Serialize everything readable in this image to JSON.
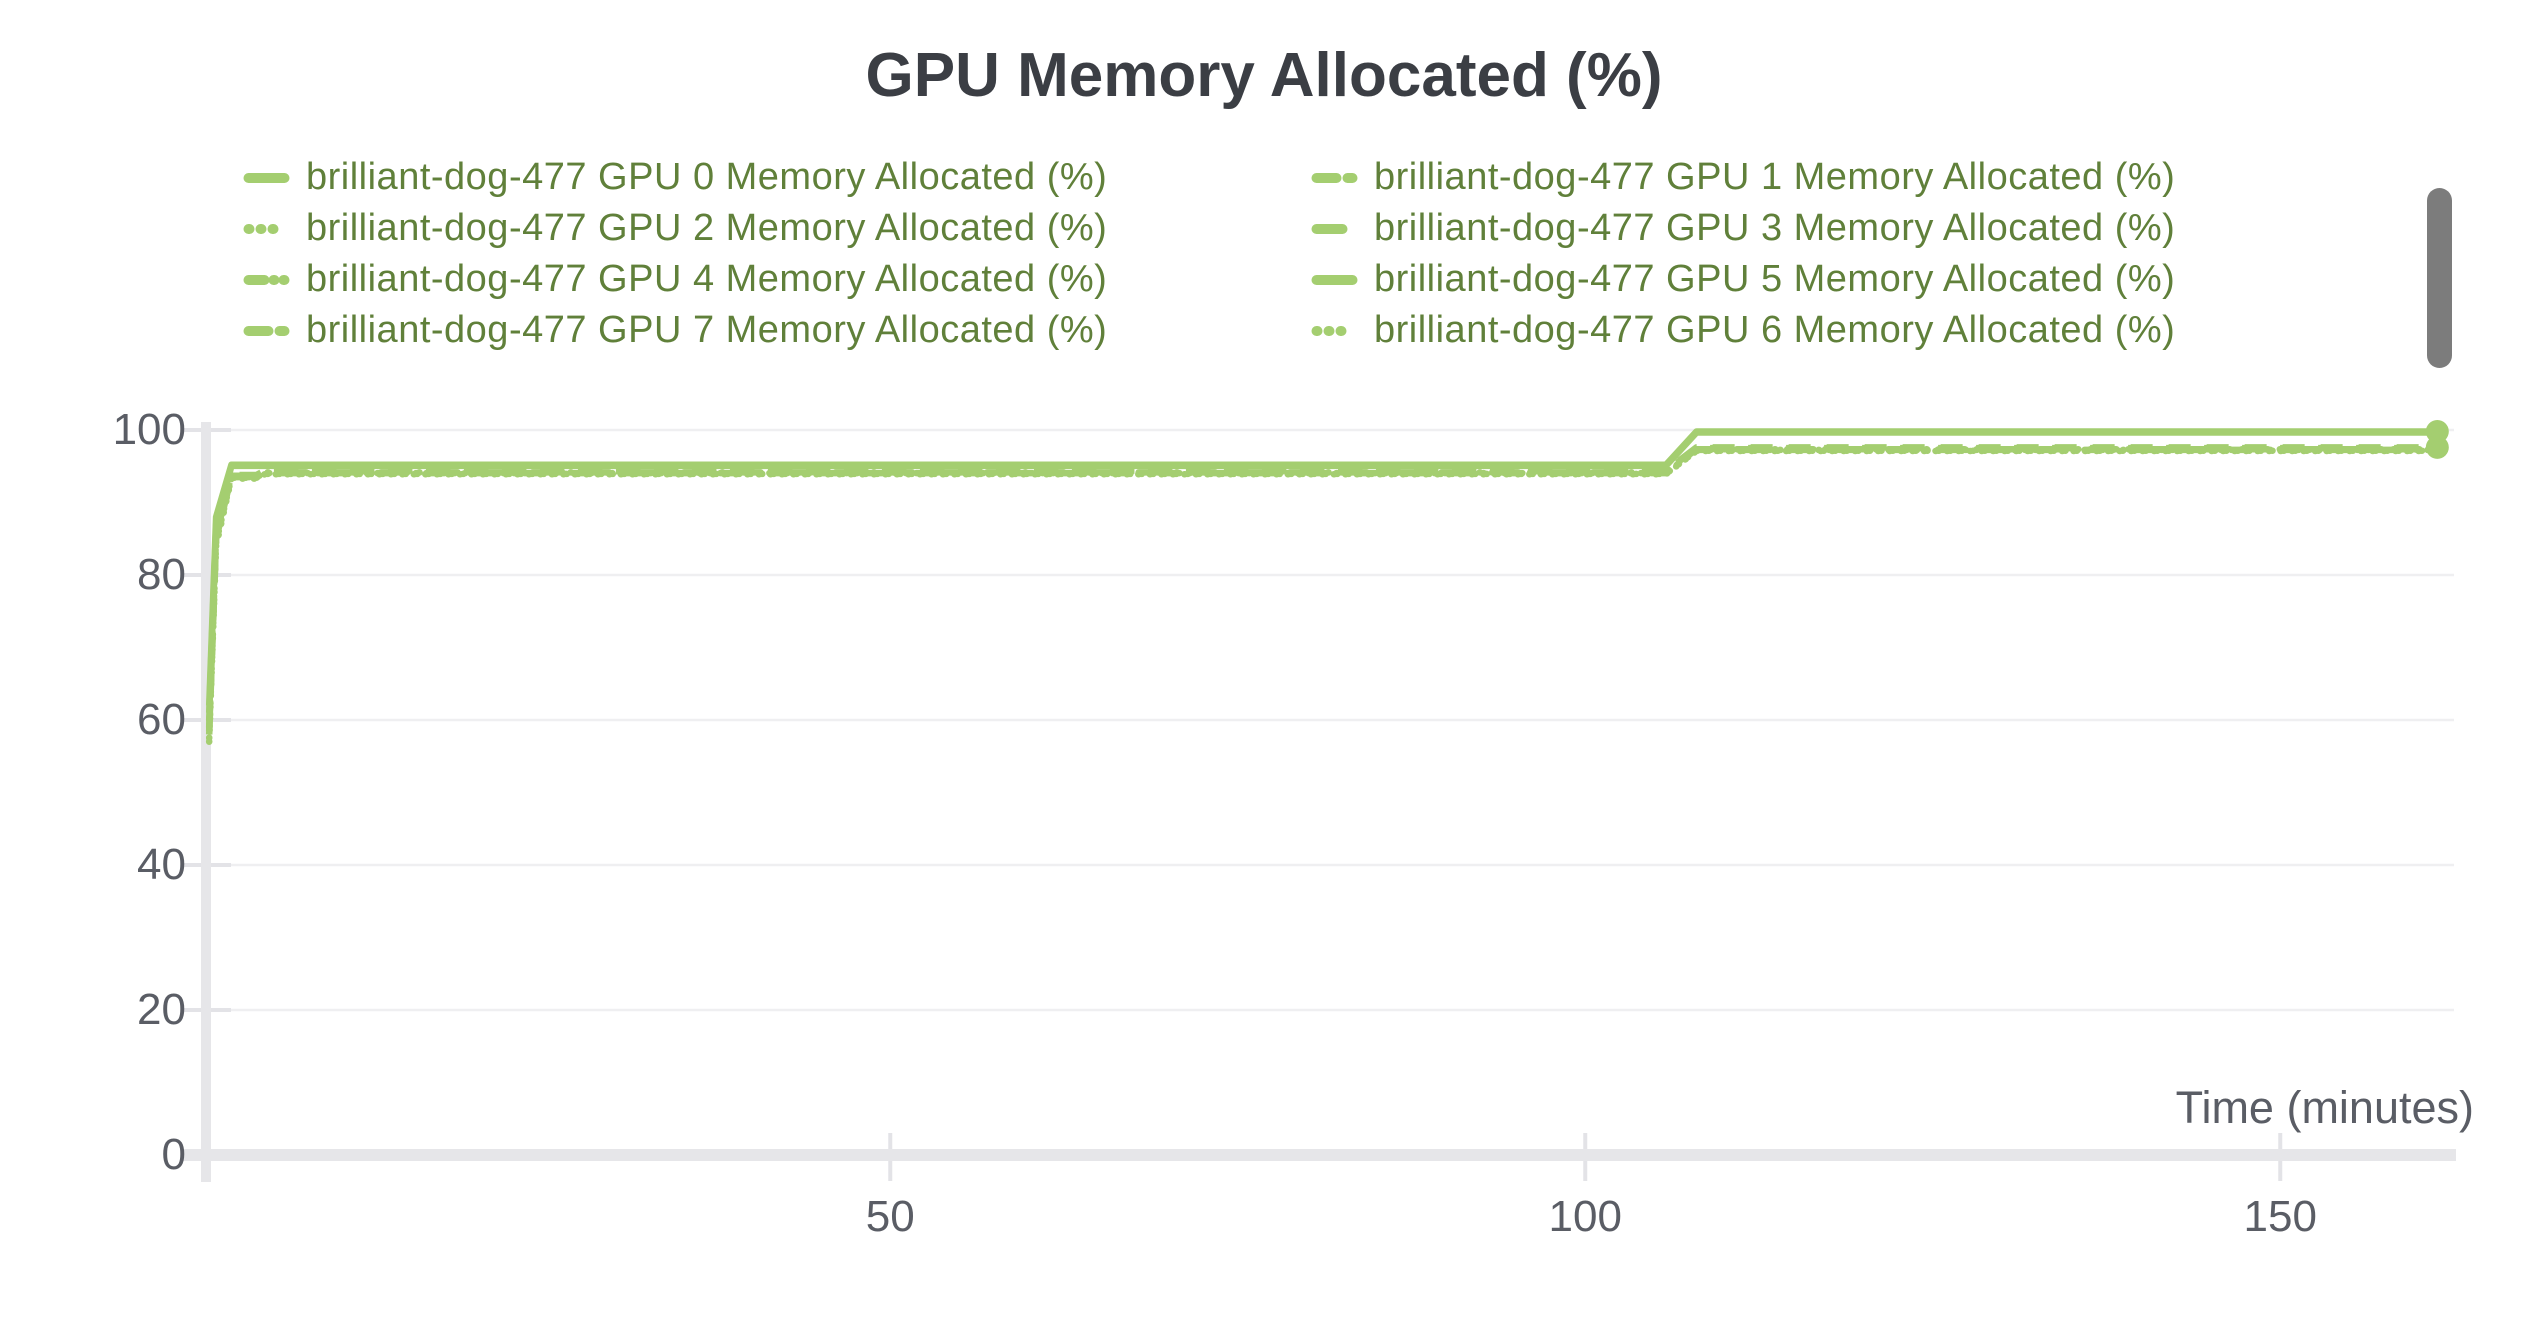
{
  "chart_data": {
    "type": "line",
    "title": "GPU Memory Allocated (%)",
    "xlabel": "Time (minutes)",
    "ylabel": "",
    "run_name": "brilliant-dog-477",
    "xlim": [
      0.7,
      162.5
    ],
    "ylim": [
      0,
      100
    ],
    "x_ticks": [
      "50",
      "100",
      "150"
    ],
    "x_tick_values": [
      50,
      100,
      150
    ],
    "y_ticks": [
      "0",
      "20",
      "40",
      "60",
      "80",
      "100"
    ],
    "y_tick_values": [
      0,
      20,
      40,
      60,
      80,
      100
    ],
    "grid": true,
    "legend_position": "top",
    "line_width": 6.5,
    "end_marker_radius": 11.5,
    "colors": {
      "line": "#a4ce70",
      "legend_text": "#60803a",
      "title_text": "#3b3e44",
      "axis_text": "#5a5d65",
      "gridline": "#efeff1",
      "axis_band": "#e6e6e9",
      "tick_stub": "#e3e3e7",
      "scrollbar": "#7c7c7c"
    },
    "series": [
      {
        "name": "brilliant-dog-477 GPU 0 Memory Allocated (%)",
        "gpu": 0,
        "dash": "solid",
        "end_dot": true,
        "points": [
          [
            1,
            62
          ],
          [
            1.5,
            88
          ],
          [
            2.6,
            95.2
          ],
          [
            105.8,
            95.2
          ],
          [
            108,
            99.8
          ],
          [
            161.3,
            99.8
          ]
        ]
      },
      {
        "name": "brilliant-dog-477 GPU 1 Memory Allocated (%)",
        "gpu": 1,
        "dash": "dashed",
        "end_dot": false,
        "points": [
          [
            1,
            58
          ],
          [
            1.5,
            85
          ],
          [
            2.6,
            93.6
          ],
          [
            4.4,
            93.6
          ],
          [
            5,
            94.3
          ],
          [
            105.8,
            94.3
          ],
          [
            108,
            97.5
          ],
          [
            161.3,
            97.5
          ]
        ]
      },
      {
        "name": "brilliant-dog-477 GPU 2 Memory Allocated (%)",
        "gpu": 2,
        "dash": "dotted",
        "end_dot": false,
        "points": [
          [
            1,
            57
          ],
          [
            1.5,
            84
          ],
          [
            2.6,
            93.3
          ],
          [
            4.4,
            93.3
          ],
          [
            5,
            93.9
          ],
          [
            105.8,
            93.9
          ],
          [
            108,
            97.1
          ],
          [
            161.3,
            97.1
          ]
        ]
      },
      {
        "name": "brilliant-dog-477 GPU 3 Memory Allocated (%)",
        "gpu": 3,
        "dash": "dash-dot",
        "end_dot": false,
        "points": [
          [
            1,
            59
          ],
          [
            1.5,
            85.5
          ],
          [
            2.6,
            93.7
          ],
          [
            4.4,
            93.7
          ],
          [
            5,
            94.15
          ],
          [
            105.8,
            94.15
          ],
          [
            108,
            97.35
          ],
          [
            161.3,
            97.35
          ]
        ]
      },
      {
        "name": "brilliant-dog-477 GPU 4 Memory Allocated (%)",
        "gpu": 4,
        "dash": "dash-dot-dot",
        "end_dot": false,
        "points": [
          [
            1,
            60
          ],
          [
            1.5,
            86
          ],
          [
            2.6,
            93.5
          ],
          [
            4.4,
            93.5
          ],
          [
            5,
            94.05
          ],
          [
            105.8,
            94.05
          ],
          [
            108,
            97.25
          ],
          [
            161.3,
            97.25
          ]
        ]
      },
      {
        "name": "brilliant-dog-477 GPU 5 Memory Allocated (%)",
        "gpu": 5,
        "dash": "solid",
        "end_dot": false,
        "points": [
          [
            1,
            61
          ],
          [
            1.5,
            87
          ],
          [
            2.6,
            95.05
          ],
          [
            105.8,
            95.05
          ],
          [
            108,
            99.65
          ],
          [
            161.3,
            99.65
          ]
        ]
      },
      {
        "name": "brilliant-dog-477 GPU 7 Memory Allocated (%)",
        "gpu": 7,
        "dash": "dashed",
        "end_dot": true,
        "points": [
          [
            1,
            58.5
          ],
          [
            1.5,
            85.2
          ],
          [
            2.6,
            93.8
          ],
          [
            4.4,
            93.8
          ],
          [
            5,
            94.4
          ],
          [
            105.8,
            94.4
          ],
          [
            108,
            97.6
          ],
          [
            161.3,
            97.6
          ]
        ]
      },
      {
        "name": "brilliant-dog-477 GPU 6 Memory Allocated (%)",
        "gpu": 6,
        "dash": "dotted",
        "end_dot": false,
        "points": [
          [
            1,
            57.5
          ],
          [
            1.5,
            84.5
          ],
          [
            2.6,
            93.4
          ],
          [
            4.4,
            93.4
          ],
          [
            5,
            93.95
          ],
          [
            105.8,
            93.95
          ],
          [
            108,
            97.15
          ],
          [
            161.3,
            97.15
          ]
        ]
      }
    ]
  },
  "scrollbar": {
    "present": true
  }
}
